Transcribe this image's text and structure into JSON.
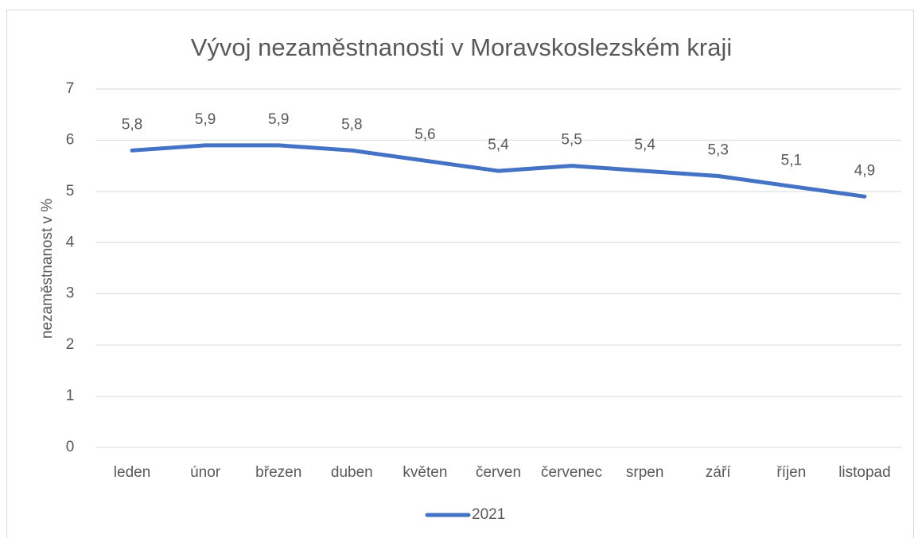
{
  "chart_data": {
    "type": "line",
    "title": "Vývoj nezaměstnanosti v Moravskoslezském kraji",
    "y_label": "nezaměstnanost v %",
    "categories": [
      "leden",
      "únor",
      "březen",
      "duben",
      "květen",
      "červen",
      "červenec",
      "srpen",
      "září",
      "říjen",
      "listopad"
    ],
    "series": [
      {
        "name": "2021",
        "color": "#4472c4",
        "values": [
          5.8,
          5.9,
          5.9,
          5.8,
          5.6,
          5.4,
          5.5,
          5.4,
          5.3,
          5.1,
          4.9
        ],
        "value_labels": [
          "5,8",
          "5,9",
          "5,9",
          "5,8",
          "5,6",
          "5,4",
          "5,5",
          "5,4",
          "5,3",
          "5,1",
          "4,9"
        ]
      }
    ],
    "ylim": [
      0,
      7
    ],
    "yticks": [
      0,
      1,
      2,
      3,
      4,
      5,
      6,
      7
    ],
    "grid": true,
    "legend": "bottom"
  }
}
